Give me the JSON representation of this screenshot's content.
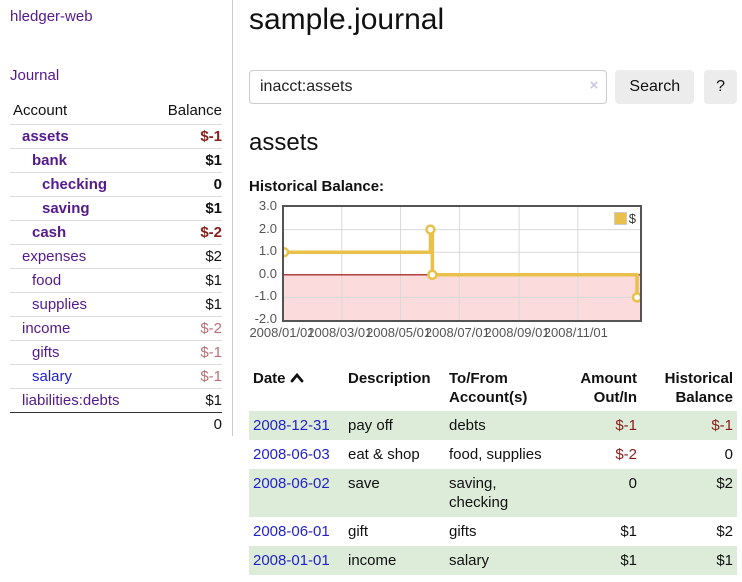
{
  "app": {
    "brand": "hledger-web",
    "nav_journal": "Journal"
  },
  "colors": {
    "link_purple": "#551a8b",
    "link_blue": "#2222cc",
    "negative_strong": "#8b1c1c",
    "negative_muted": "#b97070",
    "row_stripe_green": "#dcecd9",
    "chart_line_gold": "#e9c04a",
    "chart_negative_fill": "#fbdbdb",
    "chart_zero_line": "#990000",
    "chart_border": "#545454",
    "button_bg": "#ececec"
  },
  "icons": {
    "sort_asc": "chevron-up",
    "clear_search": "x-clear",
    "legend_swatch": "gold-square"
  },
  "sidebar": {
    "table_headers": {
      "account": "Account",
      "balance": "Balance"
    },
    "accounts": [
      {
        "name": "assets",
        "balance": "$-1",
        "indent": 1,
        "bold": true,
        "amount_style": "amt-neg"
      },
      {
        "name": "bank",
        "balance": "$1",
        "indent": 2,
        "bold": true,
        "amount_style": "amt-pos"
      },
      {
        "name": "checking",
        "balance": "0",
        "indent": 3,
        "bold": true,
        "amount_style": "amt-pos"
      },
      {
        "name": "saving",
        "balance": "$1",
        "indent": 3,
        "bold": true,
        "amount_style": "amt-pos"
      },
      {
        "name": "cash",
        "balance": "$-2",
        "indent": 2,
        "bold": true,
        "amount_style": "amt-neg"
      },
      {
        "name": "expenses",
        "balance": "$2",
        "indent": 1,
        "bold": false,
        "amount_style": "amt-pos"
      },
      {
        "name": "food",
        "balance": "$1",
        "indent": 2,
        "bold": false,
        "amount_style": "amt-pos"
      },
      {
        "name": "supplies",
        "balance": "$1",
        "indent": 2,
        "bold": false,
        "amount_style": "amt-pos"
      },
      {
        "name": "income",
        "balance": "$-2",
        "indent": 1,
        "bold": false,
        "amount_style": "amt-negmuted"
      },
      {
        "name": "gifts",
        "balance": "$-1",
        "indent": 2,
        "bold": false,
        "amount_style": "amt-negmuted"
      },
      {
        "name": "salary",
        "balance": "$-1",
        "indent": 2,
        "bold": false,
        "amount_style": "amt-negmuted",
        "link": "blue"
      },
      {
        "name": "liabilities:debts",
        "balance": "$1",
        "indent": 1,
        "bold": false,
        "amount_style": "amt-pos"
      }
    ],
    "total": "0"
  },
  "header": {
    "title": "sample.journal"
  },
  "search": {
    "value": "inacct:assets",
    "clear_icon": "×",
    "button": "Search",
    "help": "?"
  },
  "account_page": {
    "heading": "assets",
    "chart_label": "Historical Balance:"
  },
  "chart_data": {
    "type": "line",
    "title": "Historical Balance",
    "step": true,
    "series": [
      {
        "name": "$",
        "color": "#e9c04a",
        "points": [
          [
            "2008-01-01",
            1
          ],
          [
            "2008-06-01",
            2
          ],
          [
            "2008-06-02",
            2
          ],
          [
            "2008-06-03",
            0
          ],
          [
            "2008-12-31",
            -1
          ]
        ]
      }
    ],
    "ylim": [
      -2.0,
      3.0
    ],
    "yticks": [
      "3.0",
      "2.0",
      "1.0",
      "0.0",
      "-1.0",
      "-2.0"
    ],
    "xticks": [
      "2008/01/01",
      "2008/03/01",
      "2008/05/01",
      "2008/07/01",
      "2008/09/01",
      "2008/11/01"
    ],
    "grid": true,
    "legend_position": "top-right",
    "negative_region_shaded": true
  },
  "register": {
    "headers": [
      {
        "label": "Date",
        "sort": "asc"
      },
      {
        "label": "Description"
      },
      {
        "label": "To/From Account(s)"
      },
      {
        "label": "Amount Out/In"
      },
      {
        "label": "Historical Balance"
      }
    ],
    "rows": [
      {
        "date": "2008-12-31",
        "description": "pay off",
        "accounts": "debts",
        "amount": "$-1",
        "amount_neg": true,
        "balance": "$-1",
        "balance_neg": true
      },
      {
        "date": "2008-06-03",
        "description": "eat & shop",
        "accounts": "food, supplies",
        "amount": "$-2",
        "amount_neg": true,
        "balance": "0",
        "balance_neg": false
      },
      {
        "date": "2008-06-02",
        "description": "save",
        "accounts": "saving, checking",
        "amount": "0",
        "amount_neg": false,
        "balance": "$2",
        "balance_neg": false
      },
      {
        "date": "2008-06-01",
        "description": "gift",
        "accounts": "gifts",
        "amount": "$1",
        "amount_neg": false,
        "balance": "$2",
        "balance_neg": false
      },
      {
        "date": "2008-01-01",
        "description": "income",
        "accounts": "salary",
        "amount": "$1",
        "amount_neg": false,
        "balance": "$1",
        "balance_neg": false
      }
    ]
  }
}
